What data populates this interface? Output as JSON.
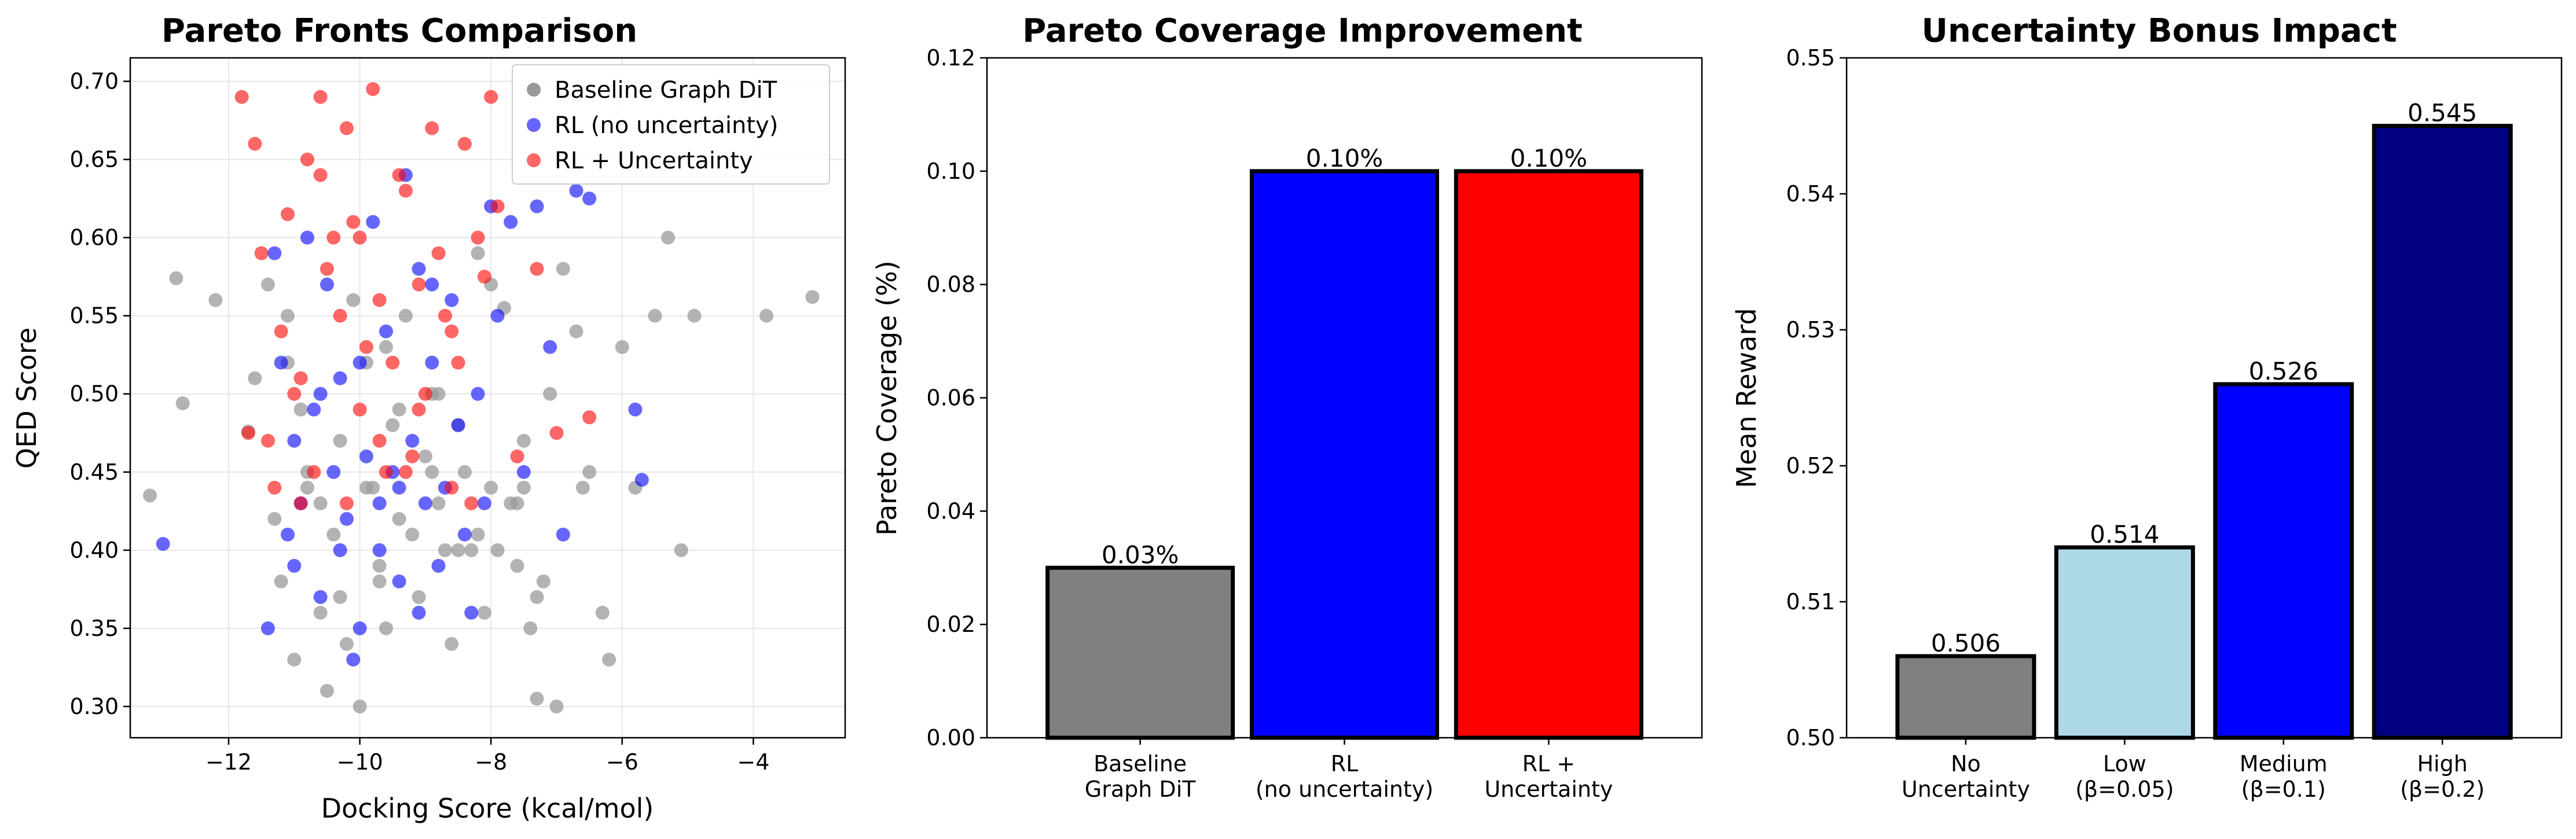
{
  "chart_data": [
    {
      "type": "scatter",
      "title": "Pareto Fronts Comparison",
      "xlabel": "Docking Score (kcal/mol)",
      "ylabel": "QED Score",
      "xlim": [
        -13.5,
        -2.6
      ],
      "ylim": [
        0.28,
        0.715
      ],
      "xticks": [
        -12,
        -10,
        -8,
        -6,
        -4
      ],
      "yticks": [
        0.3,
        0.35,
        0.4,
        0.45,
        0.5,
        0.55,
        0.6,
        0.65,
        0.7
      ],
      "grid": true,
      "legend_position": "top-right",
      "series": [
        {
          "name": "Baseline Graph DiT",
          "color": "#999999",
          "x": [
            -13.2,
            -12.8,
            -12.7,
            -12.2,
            -11.7,
            -11.6,
            -11.4,
            -11.3,
            -11.2,
            -11.1,
            -11.0,
            -10.9,
            -10.8,
            -10.6,
            -10.5,
            -10.4,
            -10.3,
            -10.2,
            -10.1,
            -10.0,
            -9.9,
            -9.8,
            -9.7,
            -9.6,
            -9.5,
            -9.4,
            -9.3,
            -9.2,
            -9.1,
            -9.0,
            -8.9,
            -8.8,
            -8.7,
            -8.6,
            -8.5,
            -8.4,
            -8.3,
            -8.2,
            -8.1,
            -8.0,
            -7.9,
            -7.8,
            -7.7,
            -7.6,
            -7.5,
            -7.4,
            -7.3,
            -7.2,
            -7.1,
            -7.0,
            -6.9,
            -6.7,
            -6.5,
            -6.3,
            -6.2,
            -6.0,
            -5.8,
            -5.5,
            -5.3,
            -5.1,
            -4.9,
            -3.8,
            -3.1,
            -10.6,
            -9.9,
            -9.4,
            -8.8,
            -8.2,
            -7.6,
            -7.3,
            -11.1,
            -10.3,
            -9.6,
            -8.9,
            -8.0,
            -7.5,
            -10.8,
            -9.7,
            -8.5,
            -6.6
          ],
          "y": [
            0.435,
            0.574,
            0.494,
            0.56,
            0.476,
            0.51,
            0.57,
            0.42,
            0.38,
            0.55,
            0.33,
            0.49,
            0.45,
            0.36,
            0.31,
            0.41,
            0.47,
            0.34,
            0.56,
            0.3,
            0.52,
            0.44,
            0.39,
            0.35,
            0.48,
            0.42,
            0.55,
            0.41,
            0.37,
            0.46,
            0.5,
            0.43,
            0.4,
            0.34,
            0.48,
            0.45,
            0.4,
            0.59,
            0.36,
            0.44,
            0.4,
            0.555,
            0.43,
            0.39,
            0.47,
            0.35,
            0.305,
            0.38,
            0.5,
            0.3,
            0.58,
            0.54,
            0.45,
            0.36,
            0.33,
            0.53,
            0.44,
            0.55,
            0.6,
            0.4,
            0.55,
            0.55,
            0.562,
            0.43,
            0.44,
            0.49,
            0.5,
            0.41,
            0.43,
            0.37,
            0.52,
            0.37,
            0.53,
            0.45,
            0.57,
            0.44,
            0.44,
            0.38,
            0.4,
            0.44
          ]
        },
        {
          "name": "RL (no uncertainty)",
          "color": "#0000ff",
          "x": [
            -13.0,
            -11.4,
            -11.3,
            -11.2,
            -11.1,
            -11.0,
            -10.9,
            -10.8,
            -10.7,
            -10.6,
            -10.5,
            -10.4,
            -10.3,
            -10.2,
            -10.1,
            -10.0,
            -9.9,
            -9.8,
            -9.7,
            -9.6,
            -9.5,
            -9.4,
            -9.3,
            -9.2,
            -9.1,
            -9.0,
            -8.9,
            -8.8,
            -8.7,
            -8.6,
            -8.5,
            -8.4,
            -8.3,
            -8.2,
            -8.1,
            -8.0,
            -7.9,
            -7.7,
            -7.5,
            -7.3,
            -7.1,
            -6.9,
            -6.7,
            -6.5,
            -5.8,
            -5.7,
            -10.6,
            -10.0,
            -9.4,
            -8.9,
            -11.0,
            -9.7,
            -9.1,
            -10.3
          ],
          "y": [
            0.404,
            0.35,
            0.59,
            0.52,
            0.41,
            0.47,
            0.43,
            0.6,
            0.49,
            0.37,
            0.57,
            0.45,
            0.4,
            0.42,
            0.33,
            0.35,
            0.46,
            0.61,
            0.4,
            0.54,
            0.45,
            0.38,
            0.64,
            0.47,
            0.58,
            0.43,
            0.52,
            0.39,
            0.44,
            0.56,
            0.48,
            0.41,
            0.36,
            0.5,
            0.43,
            0.62,
            0.55,
            0.61,
            0.45,
            0.62,
            0.53,
            0.41,
            0.63,
            0.625,
            0.49,
            0.445,
            0.5,
            0.52,
            0.44,
            0.57,
            0.39,
            0.43,
            0.36,
            0.51
          ],
          "opacity": 0.6
        },
        {
          "name": "RL + Uncertainty",
          "color": "#ff0000",
          "x": [
            -11.8,
            -11.7,
            -11.6,
            -11.5,
            -11.4,
            -11.3,
            -11.2,
            -11.1,
            -11.0,
            -10.9,
            -10.8,
            -10.7,
            -10.6,
            -10.5,
            -10.4,
            -10.3,
            -10.2,
            -10.1,
            -10.0,
            -9.9,
            -9.8,
            -9.7,
            -9.6,
            -9.5,
            -9.4,
            -9.3,
            -9.2,
            -9.1,
            -9.0,
            -8.9,
            -8.8,
            -8.7,
            -8.6,
            -8.5,
            -8.4,
            -8.3,
            -8.2,
            -8.1,
            -8.0,
            -7.9,
            -7.6,
            -7.3,
            -7.0,
            -6.5,
            -10.6,
            -10.2,
            -9.7,
            -9.1,
            -8.6,
            -10.9,
            -10.0,
            -9.3
          ],
          "y": [
            0.69,
            0.475,
            0.66,
            0.59,
            0.47,
            0.44,
            0.54,
            0.615,
            0.5,
            0.43,
            0.65,
            0.45,
            0.69,
            0.58,
            0.6,
            0.55,
            0.67,
            0.61,
            0.49,
            0.53,
            0.695,
            0.56,
            0.45,
            0.52,
            0.64,
            0.63,
            0.46,
            0.57,
            0.5,
            0.67,
            0.59,
            0.55,
            0.44,
            0.52,
            0.66,
            0.43,
            0.6,
            0.575,
            0.69,
            0.62,
            0.46,
            0.58,
            0.475,
            0.485,
            0.64,
            0.43,
            0.47,
            0.49,
            0.54,
            0.51,
            0.6,
            0.45
          ],
          "opacity": 0.6
        }
      ]
    },
    {
      "type": "bar",
      "title": "Pareto Coverage Improvement",
      "xlabel": "",
      "ylabel": "Pareto Coverage (%)",
      "ylim": [
        0,
        0.12
      ],
      "yticks": [
        "0.00",
        "0.02",
        "0.04",
        "0.06",
        "0.08",
        "0.10",
        "0.12"
      ],
      "categories": [
        [
          "Baseline",
          "Graph DiT"
        ],
        [
          "RL",
          "(no uncertainty)"
        ],
        [
          "RL +",
          "Uncertainty"
        ]
      ],
      "values": [
        0.03,
        0.1,
        0.1
      ],
      "value_labels": [
        "0.03%",
        "0.10%",
        "0.10%"
      ],
      "colors": [
        "#808080",
        "#0000ff",
        "#ff0000"
      ]
    },
    {
      "type": "bar",
      "title": "Uncertainty Bonus Impact",
      "xlabel": "",
      "ylabel": "Mean Reward",
      "ylim": [
        0.5,
        0.55
      ],
      "yticks": [
        "0.50",
        "0.51",
        "0.52",
        "0.53",
        "0.54",
        "0.55"
      ],
      "categories": [
        [
          "No",
          "Uncertainty"
        ],
        [
          "Low",
          "(β=0.05)"
        ],
        [
          "Medium",
          "(β=0.1)"
        ],
        [
          "High",
          "(β=0.2)"
        ]
      ],
      "values": [
        0.506,
        0.514,
        0.526,
        0.545
      ],
      "value_labels": [
        "0.506",
        "0.514",
        "0.526",
        "0.545"
      ],
      "colors": [
        "#808080",
        "#add8e6",
        "#0000ff",
        "#000080"
      ]
    }
  ]
}
